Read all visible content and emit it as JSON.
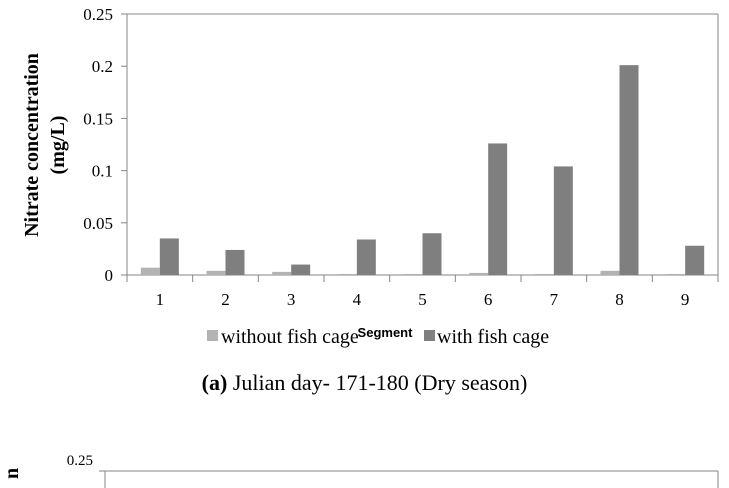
{
  "chart_data": {
    "type": "bar",
    "title": "",
    "xlabel": "Segment",
    "ylabel_line1": "Nitrate concentration",
    "ylabel_line2": "(mg/L)",
    "categories": [
      "1",
      "2",
      "3",
      "4",
      "5",
      "6",
      "7",
      "8",
      "9"
    ],
    "series": [
      {
        "name": "without fish cage",
        "color": "#b3b3b3",
        "values": [
          0.007,
          0.004,
          0.003,
          0.001,
          0.001,
          0.002,
          0.001,
          0.004,
          0.001
        ]
      },
      {
        "name": "with fish cage",
        "color": "#7f7f7f",
        "values": [
          0.035,
          0.024,
          0.01,
          0.034,
          0.04,
          0.126,
          0.104,
          0.201,
          0.028
        ]
      }
    ],
    "ylim": [
      0,
      0.25
    ],
    "yticks": [
      "0",
      "0.05",
      "0.1",
      "0.15",
      "0.2",
      "0.25"
    ],
    "yticks_values": [
      0,
      0.05,
      0.1,
      0.15,
      0.2,
      0.25
    ],
    "legend_position": "bottom",
    "grid": false
  },
  "caption": {
    "label": "(a)",
    "text": " Julian day- 171-180 (Dry season)"
  },
  "second_chart": {
    "ylabel_fragment": "n",
    "top_tick": "0.25"
  }
}
